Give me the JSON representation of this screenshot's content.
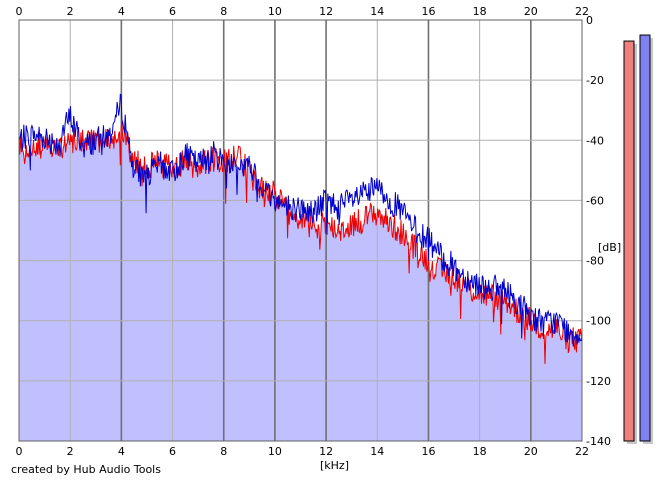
{
  "credit": "created by Hub Audio Tools",
  "chart_data": {
    "type": "area",
    "xlabel": "[kHz]",
    "ylabel": "[dB]",
    "xlim": [
      0,
      22
    ],
    "ylim": [
      -140,
      0
    ],
    "x_ticks": [
      "0",
      "2",
      "4",
      "6",
      "8",
      "10",
      "12",
      "14",
      "16",
      "18",
      "20",
      "22"
    ],
    "y_ticks": [
      "0",
      "-20",
      "-40",
      "-60",
      "-80",
      "-100",
      "-120",
      "-140"
    ],
    "grid": true,
    "colors": {
      "fill": "#c0c0ff",
      "channel_a": "#0000cc",
      "channel_b": "#ee0000",
      "grid_minor": "#b0b0b0",
      "grid_major": "#707070",
      "meter_left": "#f08080",
      "meter_right": "#8080f0"
    },
    "series": [
      {
        "x": [
          0,
          0.5,
          1,
          1.5,
          2,
          2.5,
          3,
          3.5,
          4,
          4.5,
          5,
          5.5,
          6,
          6.5,
          7,
          7.5,
          8,
          8.5,
          9,
          9.5,
          10,
          10.5,
          11,
          11.5,
          12,
          12.5,
          13,
          13.5,
          14,
          14.5,
          15,
          15.5,
          16,
          16.5,
          17,
          17.5,
          18,
          18.5,
          19,
          19.5,
          20,
          20.5,
          21,
          21.5,
          22
        ],
        "values": [
          -40,
          -38,
          -39,
          -41,
          -32,
          -42,
          -40,
          -39,
          -28,
          -50,
          -52,
          -48,
          -51,
          -45,
          -48,
          -44,
          -47,
          -48,
          -49,
          -55,
          -60,
          -62,
          -63,
          -64,
          -60,
          -62,
          -60,
          -58,
          -56,
          -60,
          -64,
          -70,
          -73,
          -79,
          -82,
          -86,
          -88,
          -89,
          -90,
          -94,
          -98,
          -101,
          -100,
          -104,
          -105
        ]
      },
      {
        "x": [
          0,
          0.5,
          1,
          1.5,
          2,
          2.5,
          3,
          3.5,
          4,
          4.5,
          5,
          5.5,
          6,
          6.5,
          7,
          7.5,
          8,
          8.5,
          9,
          9.5,
          10,
          10.5,
          11,
          11.5,
          12,
          12.5,
          13,
          13.5,
          14,
          14.5,
          15,
          15.5,
          16,
          16.5,
          17,
          17.5,
          18,
          18.5,
          19,
          19.5,
          20,
          20.5,
          21,
          21.5,
          22
        ],
        "values": [
          -42,
          -41,
          -42,
          -43,
          -40,
          -40,
          -41,
          -40,
          -36,
          -47,
          -50,
          -44,
          -50,
          -47,
          -49,
          -46,
          -47,
          -45,
          -51,
          -56,
          -58,
          -64,
          -66,
          -69,
          -68,
          -70,
          -68,
          -66,
          -64,
          -68,
          -71,
          -76,
          -80,
          -84,
          -85,
          -89,
          -91,
          -92,
          -93,
          -97,
          -100,
          -103,
          -103,
          -106,
          -107
        ]
      }
    ],
    "meters": [
      {
        "level_db": -7
      },
      {
        "level_db": -5
      }
    ]
  }
}
